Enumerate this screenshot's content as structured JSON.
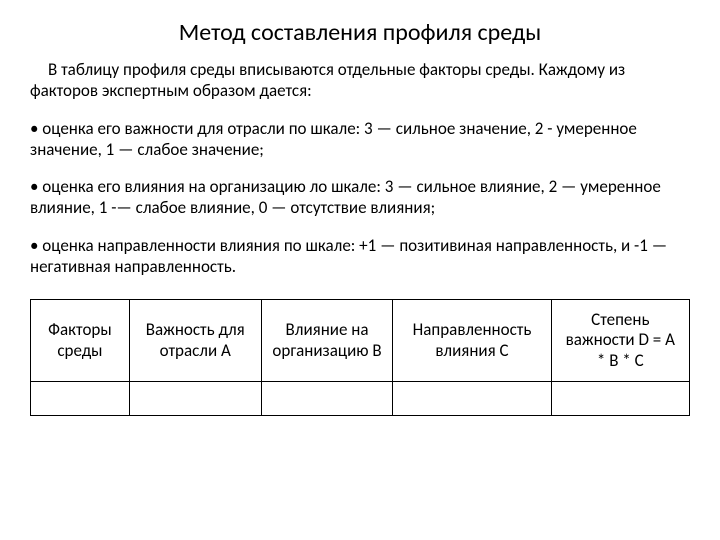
{
  "title": "Метод составления профиля среды",
  "intro": "В таблицу профиля среды вписываются отдельные факторы среды. Каждому из факторов экспертным образом дается:",
  "bullets": [
    "• оценка его важности для отрасли по шкале: 3 — сильное значение, 2 - умеренное значение, 1 — слабое значение;",
    "• оценка его влияния на организацию ло шкале: 3 — сильное влияние, 2 — умеренное влияние, 1 -— слабое влияние, 0 — отсутствие влияния;",
    "• оценка направленности влияния по шкале: +1 — позитивиная направленность, и -1 — негативная направленность."
  ],
  "table": {
    "columns": [
      "Факторы среды",
      "Важность для отрасли А",
      "Влияние на организацию В",
      "Направленность влияния С",
      "Степень важности D = A * B * C"
    ],
    "rows": [
      [
        "",
        "",
        "",
        "",
        ""
      ]
    ]
  }
}
